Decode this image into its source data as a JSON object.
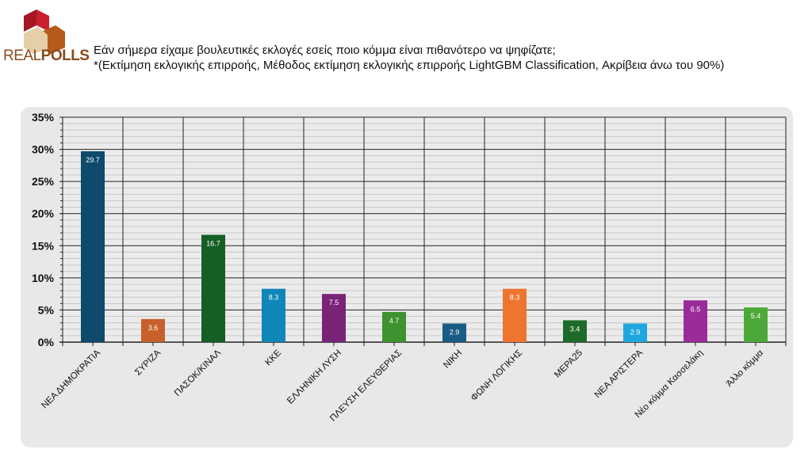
{
  "logo": {
    "text_light": "REAL",
    "text_bold": "POLLS"
  },
  "title": {
    "line1": "Εάν σήμερα είχαμε βουλευτικές εκλογές εσείς ποιο κόμμα είναι πιθανότερο να ψηφίζατε;",
    "line2": "*(Εκτίμηση εκλογικής επιρροής, Μέθοδος εκτίμηση εκλογικής επιρροής  LightGBM Classification, Ακρίβεια άνω του 90%)"
  },
  "chart_data": {
    "type": "bar",
    "categories": [
      "ΝΕΑ ΔΗΜΟΚΡΑΤΙΑ",
      "ΣΥΡΙΖΑ",
      "ΠΑΣΟΚ/ΚΙΝΑΛ",
      "ΚΚΕ",
      "ΕΛΛΗΝΙΚΗ ΛΥΣΗ",
      "ΠΛΕΥΣΗ ΕΛΕΥΘΕΡΙΑΣ",
      "ΝΙΚΗ",
      "ΦΩΝΗ ΛΟΓΙΚΗΣ",
      "ΜΕΡΑ25",
      "ΝΕΑ ΑΡΙΣΤΕΡΑ",
      "Νέο κόμμα Κασσελάκη",
      "Άλλο κόμμα"
    ],
    "values": [
      29.7,
      3.6,
      16.7,
      8.3,
      7.5,
      4.7,
      2.9,
      8.3,
      3.4,
      2.9,
      6.5,
      5.4
    ],
    "data_labels": [
      "29.7",
      "3.6",
      "16.7",
      "8.3",
      "7.5",
      "4.7",
      "2.9",
      "8.3",
      "3.4",
      "2.9",
      "6.5",
      "5.4"
    ],
    "colors": [
      "#0d4a6b",
      "#c8602b",
      "#155e25",
      "#0e86b8",
      "#7a2478",
      "#3e9230",
      "#185b85",
      "#ee7530",
      "#1d6b2b",
      "#1ea7de",
      "#9b2b99",
      "#4da83a"
    ],
    "ylim": [
      0,
      35
    ],
    "yticks": [
      "0%",
      "5%",
      "10%",
      "15%",
      "20%",
      "25%",
      "30%",
      "35%"
    ],
    "grid": true,
    "xlabel": "",
    "ylabel": ""
  }
}
